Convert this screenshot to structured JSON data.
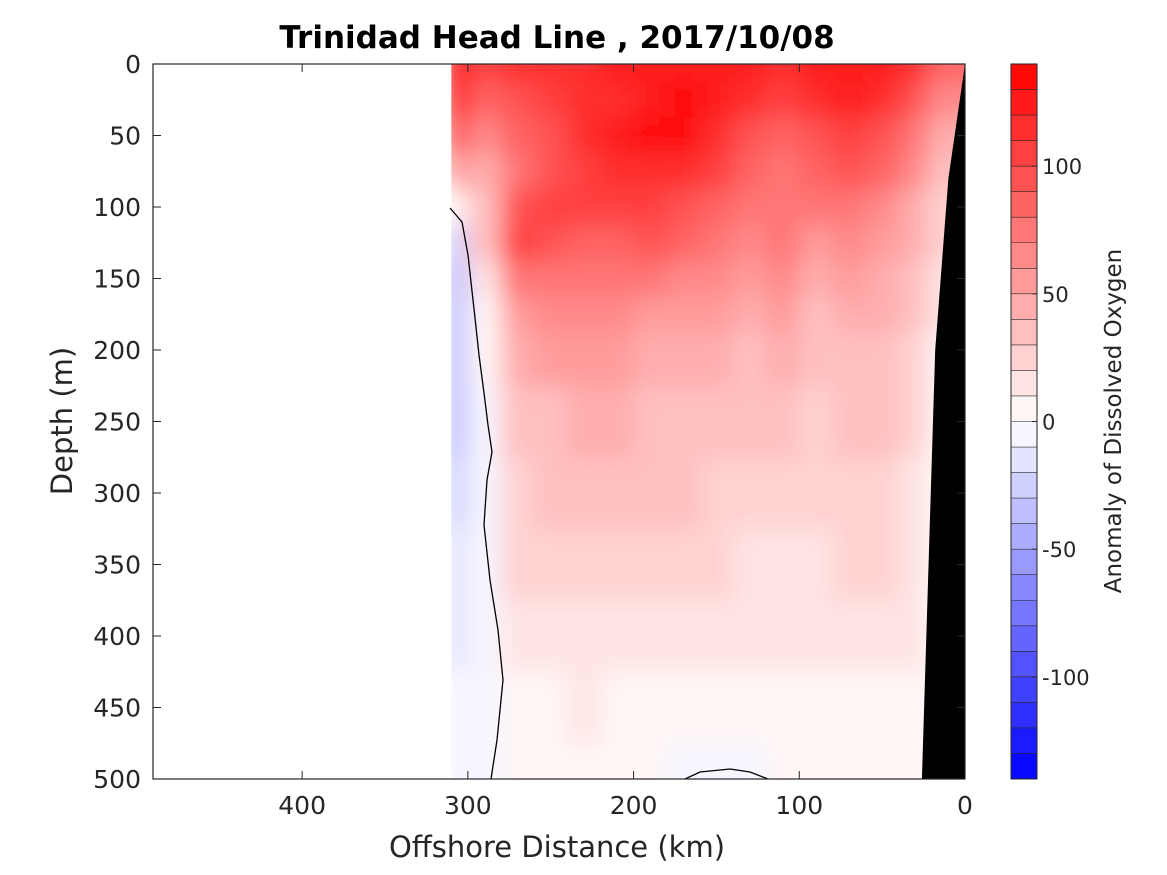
{
  "chart_data": {
    "type": "heatmap",
    "title": "Trinidad Head Line , 2017/10/08",
    "xlabel": "Offshore Distance (km)",
    "ylabel": "Depth (m)",
    "xlim": [
      490,
      0
    ],
    "ylim": [
      0,
      500
    ],
    "x_reversed": true,
    "y_reversed": true,
    "x_ticks": [
      "400",
      "300",
      "200",
      "100",
      "0"
    ],
    "x_tick_values": [
      400,
      300,
      200,
      100,
      0
    ],
    "y_ticks": [
      "0",
      "50",
      "100",
      "150",
      "200",
      "250",
      "300",
      "350",
      "400",
      "450",
      "500"
    ],
    "y_tick_values": [
      0,
      50,
      100,
      150,
      200,
      250,
      300,
      350,
      400,
      450,
      500
    ],
    "colorbar": {
      "label": "Anomaly of Dissolved Oxygen",
      "range": [
        -140,
        140
      ],
      "ticks": [
        "-100",
        "-50",
        "0",
        "50",
        "100"
      ],
      "tick_values": [
        -100,
        -50,
        0,
        50,
        100
      ],
      "levels": 28,
      "colormap": "blue-white-red",
      "neg_color": "#0000ff",
      "pos_color": "#ff0000"
    },
    "grid": {
      "x_km": [
        310,
        290,
        270,
        250,
        230,
        210,
        190,
        170,
        150,
        130,
        110,
        90,
        70,
        50,
        30,
        15
      ],
      "depth_m": [
        0,
        25,
        50,
        75,
        100,
        125,
        150,
        175,
        200,
        250,
        300,
        350,
        400,
        450,
        500
      ],
      "values": [
        [
          130,
          100,
          110,
          110,
          115,
          120,
          120,
          125,
          125,
          120,
          115,
          120,
          125,
          125,
          110,
          80
        ],
        [
          120,
          80,
          95,
          100,
          110,
          115,
          125,
          130,
          120,
          110,
          100,
          110,
          120,
          115,
          90,
          60
        ],
        [
          90,
          60,
          80,
          95,
          110,
          120,
          135,
          130,
          115,
          95,
          80,
          95,
          105,
          95,
          75,
          45
        ],
        [
          50,
          45,
          70,
          95,
          105,
          110,
          115,
          110,
          100,
          85,
          75,
          80,
          90,
          80,
          60,
          35
        ],
        [
          5,
          35,
          90,
          100,
          100,
          100,
          100,
          95,
          85,
          75,
          70,
          70,
          75,
          65,
          45,
          25
        ],
        [
          -30,
          30,
          100,
          90,
          85,
          85,
          90,
          80,
          70,
          65,
          70,
          55,
          60,
          55,
          40,
          20
        ],
        [
          -40,
          15,
          70,
          75,
          75,
          75,
          70,
          65,
          60,
          55,
          65,
          45,
          50,
          45,
          35,
          15
        ],
        [
          -40,
          5,
          55,
          60,
          60,
          60,
          55,
          55,
          50,
          45,
          55,
          35,
          45,
          40,
          30,
          10
        ],
        [
          -40,
          0,
          40,
          50,
          50,
          50,
          45,
          45,
          40,
          35,
          40,
          30,
          35,
          35,
          25,
          8
        ],
        [
          -40,
          -5,
          30,
          38,
          40,
          40,
          38,
          35,
          33,
          30,
          30,
          25,
          30,
          30,
          20,
          5
        ],
        [
          -30,
          -5,
          25,
          30,
          32,
          35,
          38,
          35,
          25,
          24,
          20,
          22,
          25,
          25,
          18,
          5
        ],
        [
          -20,
          -5,
          20,
          24,
          25,
          24,
          25,
          24,
          20,
          18,
          15,
          18,
          20,
          20,
          15,
          5
        ],
        [
          -15,
          -5,
          15,
          18,
          18,
          15,
          15,
          15,
          14,
          12,
          10,
          12,
          14,
          14,
          12,
          3
        ],
        [
          -10,
          -3,
          5,
          8,
          10,
          8,
          8,
          7,
          6,
          6,
          5,
          5,
          5,
          5,
          5,
          0
        ],
        [
          -8,
          -3,
          0,
          0,
          0,
          0,
          0,
          -2,
          -5,
          -5,
          0,
          0,
          0,
          0,
          0,
          0
        ]
      ],
      "no_data_beyond_km": 310,
      "bottom_topography_km": [
        [
          0,
          0
        ],
        [
          10,
          80
        ],
        [
          18,
          200
        ],
        [
          26,
          500
        ]
      ]
    }
  }
}
